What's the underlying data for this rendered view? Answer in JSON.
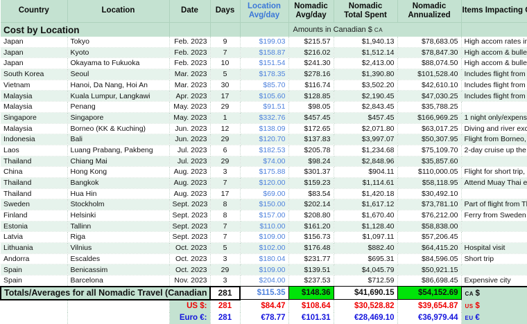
{
  "colors": {
    "teal": "#c4e2d1",
    "row_alt": "#e6f3ec",
    "header_blue": "#3c78d8",
    "value_blue": "#4e82dd",
    "highlight_green": "#00e409",
    "red": "#ee0000",
    "euro_blue": "#1414dd"
  },
  "table": {
    "section_title": "Cost by Location",
    "amounts_note": "Amounts in Canadian $",
    "amounts_note_code": "CA",
    "columns": [
      {
        "id": "country",
        "label": "Country"
      },
      {
        "id": "location",
        "label": "Location"
      },
      {
        "id": "date",
        "label": "Date"
      },
      {
        "id": "days",
        "label": "Days"
      },
      {
        "id": "loc_avg",
        "label_lines": [
          "Location",
          "Avg/day"
        ],
        "accent": true
      },
      {
        "id": "nom_avg",
        "label_lines": [
          "Nomadic",
          "Avg/day"
        ]
      },
      {
        "id": "total",
        "label_lines": [
          "Nomadic",
          "Total Spent"
        ]
      },
      {
        "id": "annualized",
        "label_lines": [
          "Nomadic",
          "Annualized"
        ]
      },
      {
        "id": "items",
        "label": "Items Impacting Cost"
      }
    ],
    "rows": [
      {
        "country": "Japan",
        "location": "Tokyo",
        "date": "Feb. 2023",
        "days": "9",
        "loc_avg": "$199.03",
        "nom_avg": "$215.57",
        "total": "$1,940.13",
        "annualized": "$78,683.05",
        "items": "High accom rates in Tokyo"
      },
      {
        "country": "Japan",
        "location": "Kyoto",
        "date": "Feb. 2023",
        "days": "7",
        "loc_avg": "$158.87",
        "nom_avg": "$216.02",
        "total": "$1,512.14",
        "annualized": "$78,847.30",
        "items": "High accom & bullet train"
      },
      {
        "country": "Japan",
        "location": "Okayama to Fukuoka",
        "date": "Feb. 2023",
        "days": "10",
        "loc_avg": "$151.54",
        "nom_avg": "$241.30",
        "total": "$2,413.00",
        "annualized": "$88,074.50",
        "items": "High accom & bullet train"
      },
      {
        "country": "South Korea",
        "location": "Seoul",
        "date": "Mar. 2023",
        "days": "5",
        "loc_avg": "$178.35",
        "nom_avg": "$278.16",
        "total": "$1,390.80",
        "annualized": "$101,528.40",
        "items": "Includes flight from Japan"
      },
      {
        "country": "Vietnam",
        "location": "Hanoi, Da Nang, Hoi An",
        "date": "Mar. 2023",
        "days": "30",
        "loc_avg": "$85.70",
        "nom_avg": "$116.74",
        "total": "$3,502.20",
        "annualized": "$42,610.10",
        "items": "Includes flight from Korea"
      },
      {
        "country": "Malaysia",
        "location": "Kuala Lumpur, Langkawi",
        "date": "Apr. 2023",
        "days": "17",
        "loc_avg": "$105.60",
        "nom_avg": "$128.85",
        "total": "$2,190.45",
        "annualized": "$47,030.25",
        "items": "Includes flight from Vietnam"
      },
      {
        "country": "Malaysia",
        "location": "Penang",
        "date": "May. 2023",
        "days": "29",
        "loc_avg": "$91.51",
        "nom_avg": "$98.05",
        "total": "$2,843.45",
        "annualized": "$35,788.25",
        "items": ""
      },
      {
        "country": "Singapore",
        "location": "Singapore",
        "date": "May. 2023",
        "days": "1",
        "loc_avg": "$332.76",
        "nom_avg": "$457.45",
        "total": "$457.45",
        "annualized": "$166,969.25",
        "items": "1 night only/expensive city"
      },
      {
        "country": "Malaysia",
        "location": "Borneo (KK & Kuching)",
        "date": "Jun. 2023",
        "days": "12",
        "loc_avg": "$138.09",
        "nom_avg": "$172.65",
        "total": "$2,071.80",
        "annualized": "$63,017.25",
        "items": "Diving and river excursion"
      },
      {
        "country": "Indonesia",
        "location": "Bali",
        "date": "Jun. 2023",
        "days": "29",
        "loc_avg": "$120.70",
        "nom_avg": "$137.83",
        "total": "$3,997.07",
        "annualized": "$50,307.95",
        "items": "Flight from Borneo, diving"
      },
      {
        "country": "Laos",
        "location": "Luang Prabang, Pakbeng",
        "date": "Jul. 2023",
        "days": "6",
        "loc_avg": "$182.53",
        "nom_avg": "$205.78",
        "total": "$1,234.68",
        "annualized": "$75,109.70",
        "items": "2-day cruise up the Mekong"
      },
      {
        "country": "Thailand",
        "location": "Chiang Mai",
        "date": "Jul. 2023",
        "days": "29",
        "loc_avg": "$74.00",
        "nom_avg": "$98.24",
        "total": "$2,848.96",
        "annualized": "$35,857.60",
        "items": ""
      },
      {
        "country": "China",
        "location": "Hong Kong",
        "date": "Aug. 2023",
        "days": "3",
        "loc_avg": "$175.88",
        "nom_avg": "$301.37",
        "total": "$904.11",
        "annualized": "$110,000.05",
        "items": "Flight for short trip, HK costs"
      },
      {
        "country": "Thailand",
        "location": "Bangkok",
        "date": "Aug. 2023",
        "days": "7",
        "loc_avg": "$120.00",
        "nom_avg": "$159.23",
        "total": "$1,114.61",
        "annualized": "$58,118.95",
        "items": "Attend Muay Thai event"
      },
      {
        "country": "Thailand",
        "location": "Hua Hin",
        "date": "Aug. 2023",
        "days": "17",
        "loc_avg": "$69.00",
        "nom_avg": "$83.54",
        "total": "$1,420.18",
        "annualized": "$30,492.10",
        "items": ""
      },
      {
        "country": "Sweden",
        "location": "Stockholm",
        "date": "Sept. 2023",
        "days": "8",
        "loc_avg": "$150.00",
        "nom_avg": "$202.14",
        "total": "$1,617.12",
        "annualized": "$73,781.10",
        "items": "Part of flight from Thailand"
      },
      {
        "country": "Finland",
        "location": "Helsinki",
        "date": "Sept. 2023",
        "days": "8",
        "loc_avg": "$157.00",
        "nom_avg": "$208.80",
        "total": "$1,670.40",
        "annualized": "$76,212.00",
        "items": "Ferry from Sweden"
      },
      {
        "country": "Estonia",
        "location": "Tallinn",
        "date": "Sept. 2023",
        "days": "7",
        "loc_avg": "$110.00",
        "nom_avg": "$161.20",
        "total": "$1,128.40",
        "annualized": "$58,838.00",
        "items": ""
      },
      {
        "country": "Latvia",
        "location": "Riga",
        "date": "Sept. 2023",
        "days": "7",
        "loc_avg": "$109.00",
        "nom_avg": "$156.73",
        "total": "$1,097.11",
        "annualized": "$57,206.45",
        "items": ""
      },
      {
        "country": "Lithuania",
        "location": "Vilnius",
        "date": "Oct. 2023",
        "days": "5",
        "loc_avg": "$102.00",
        "nom_avg": "$176.48",
        "total": "$882.40",
        "annualized": "$64,415.20",
        "items": "Hospital visit"
      },
      {
        "country": "Andorra",
        "location": "Escaldes",
        "date": "Oct. 2023",
        "days": "3",
        "loc_avg": "$180.04",
        "nom_avg": "$231.77",
        "total": "$695.31",
        "annualized": "$84,596.05",
        "items": "Short trip"
      },
      {
        "country": "Spain",
        "location": "Benicassim",
        "date": "Oct. 2023",
        "days": "29",
        "loc_avg": "$109.00",
        "nom_avg": "$139.51",
        "total": "$4,045.79",
        "annualized": "$50,921.15",
        "items": ""
      },
      {
        "country": "Spain",
        "location": "Barcelona",
        "date": "Nov. 2023",
        "days": "3",
        "loc_avg": "$204.00",
        "nom_avg": "$237.53",
        "total": "$712.59",
        "annualized": "$86,698.45",
        "items": "Expensive city"
      }
    ],
    "totals": [
      {
        "style": "ca",
        "label": "Totals/Averages for all Nomadic Travel (Canadian $):",
        "days": "281",
        "loc_avg": "$115.35",
        "nom_avg": "$148.36",
        "total": "$41,690.15",
        "annualized": "$54,152.69",
        "code": "CA",
        "symbol": "$"
      },
      {
        "style": "us",
        "label": "US $:",
        "days": "281",
        "loc_avg": "$84.47",
        "nom_avg": "$108.64",
        "total": "$30,528.82",
        "annualized": "$39,654.87",
        "code": "US",
        "symbol": "$"
      },
      {
        "style": "eu",
        "label": "Euro €:",
        "days": "281",
        "loc_avg": "€78.77",
        "nom_avg": "€101.31",
        "total": "€28,469.10",
        "annualized": "€36,979.44",
        "code": "EU",
        "symbol": "€"
      }
    ]
  }
}
